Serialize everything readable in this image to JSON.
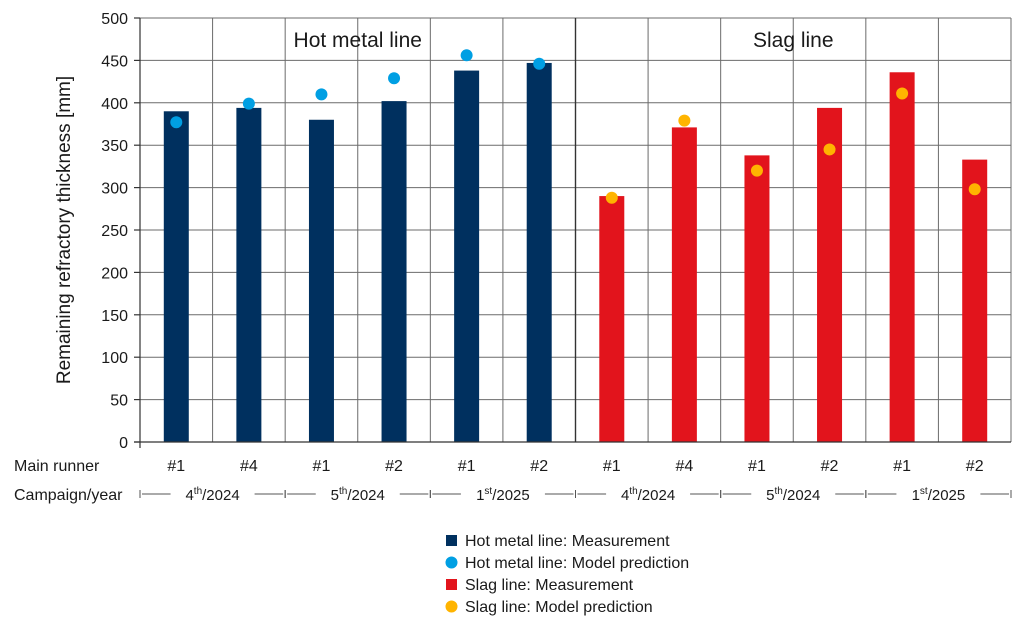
{
  "chart_data": {
    "type": "bar",
    "ylabel": "Remaining refractory thickness [mm]",
    "ylim": [
      0,
      500
    ],
    "yticks": [
      0,
      50,
      100,
      150,
      200,
      250,
      300,
      350,
      400,
      450,
      500
    ],
    "grid": true,
    "sections": [
      {
        "label": "Hot metal line",
        "bar_color": "#00305f",
        "dot_color": "#009fe3"
      },
      {
        "label": "Slag line",
        "bar_color": "#e2141c",
        "dot_color": "#ffb400"
      }
    ],
    "row_labels": {
      "runner": "Main runner",
      "campaign": "Campaign/year"
    },
    "groups": [
      {
        "section": 0,
        "runner": "#1",
        "measurement": 390,
        "prediction": 377
      },
      {
        "section": 0,
        "runner": "#4",
        "measurement": 394,
        "prediction": 399
      },
      {
        "section": 0,
        "runner": "#1",
        "measurement": 380,
        "prediction": 410
      },
      {
        "section": 0,
        "runner": "#2",
        "measurement": 402,
        "prediction": 429
      },
      {
        "section": 0,
        "runner": "#1",
        "measurement": 438,
        "prediction": 456
      },
      {
        "section": 0,
        "runner": "#2",
        "measurement": 447,
        "prediction": 446
      },
      {
        "section": 1,
        "runner": "#1",
        "measurement": 290,
        "prediction": 288
      },
      {
        "section": 1,
        "runner": "#4",
        "measurement": 371,
        "prediction": 379
      },
      {
        "section": 1,
        "runner": "#1",
        "measurement": 338,
        "prediction": 320
      },
      {
        "section": 1,
        "runner": "#2",
        "measurement": 394,
        "prediction": 345
      },
      {
        "section": 1,
        "runner": "#1",
        "measurement": 436,
        "prediction": 411
      },
      {
        "section": 1,
        "runner": "#2",
        "measurement": 333,
        "prediction": 298
      }
    ],
    "campaigns": [
      {
        "num": "4",
        "sup": "th",
        "year": "/2024"
      },
      {
        "num": "5",
        "sup": "th",
        "year": "/2024"
      },
      {
        "num": "1",
        "sup": "st",
        "year": "/2025"
      },
      {
        "num": "4",
        "sup": "th",
        "year": "/2024"
      },
      {
        "num": "5",
        "sup": "th",
        "year": "/2024"
      },
      {
        "num": "1",
        "sup": "st",
        "year": "/2025"
      }
    ],
    "legend": [
      {
        "label": "Hot metal line: Measurement",
        "shape": "square",
        "color": "#00305f"
      },
      {
        "label": "Hot metal line: Model prediction",
        "shape": "circle",
        "color": "#009fe3"
      },
      {
        "label": "Slag line: Measurement",
        "shape": "square",
        "color": "#e2141c"
      },
      {
        "label": "Slag line: Model prediction",
        "shape": "circle",
        "color": "#ffb400"
      }
    ]
  }
}
